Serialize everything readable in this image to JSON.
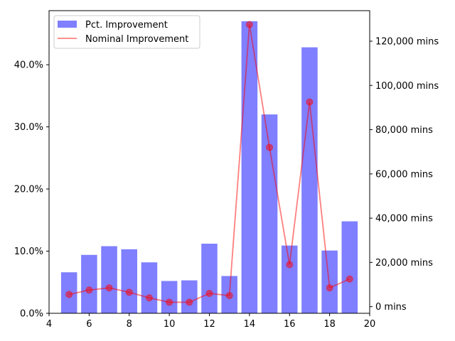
{
  "chart_data": {
    "type": "bar+line",
    "x": [
      5,
      6,
      7,
      8,
      9,
      10,
      11,
      12,
      13,
      14,
      15,
      16,
      17,
      18,
      19
    ],
    "series": [
      {
        "name": "Pct. Improvement",
        "type": "bar",
        "axis": "left",
        "color": "#0000ff",
        "opacity": 0.5,
        "values": [
          0.066,
          0.094,
          0.108,
          0.103,
          0.082,
          0.052,
          0.053,
          0.112,
          0.06,
          0.47,
          0.32,
          0.109,
          0.428,
          0.101,
          0.148
        ]
      },
      {
        "name": "Nominal Improvement",
        "type": "line",
        "axis": "right",
        "color": "#ff0000",
        "opacity": 0.5,
        "values": [
          5500,
          7500,
          8500,
          6500,
          4000,
          2000,
          2000,
          6000,
          5000,
          127500,
          72000,
          19000,
          92500,
          8500,
          12500
        ]
      }
    ],
    "xlim": [
      4,
      20
    ],
    "x_ticks": [
      4,
      6,
      8,
      10,
      12,
      14,
      16,
      18,
      20
    ],
    "ylim_left": [
      0,
      0.487
    ],
    "y_ticks_left": [
      0,
      0.1,
      0.2,
      0.3,
      0.4
    ],
    "y_tick_labels_left": [
      "0.0%",
      "10.0%",
      "20.0%",
      "30.0%",
      "40.0%"
    ],
    "ylim_right": [
      -3000,
      133800
    ],
    "y_ticks_right": [
      0,
      20000,
      40000,
      60000,
      80000,
      100000,
      120000
    ],
    "y_tick_labels_right": [
      "0 mins",
      "20,000 mins",
      "40,000 mins",
      "60,000 mins",
      "80,000 mins",
      "100,000 mins",
      "120,000 mins"
    ],
    "legend_position": "top-left",
    "grid": false
  }
}
